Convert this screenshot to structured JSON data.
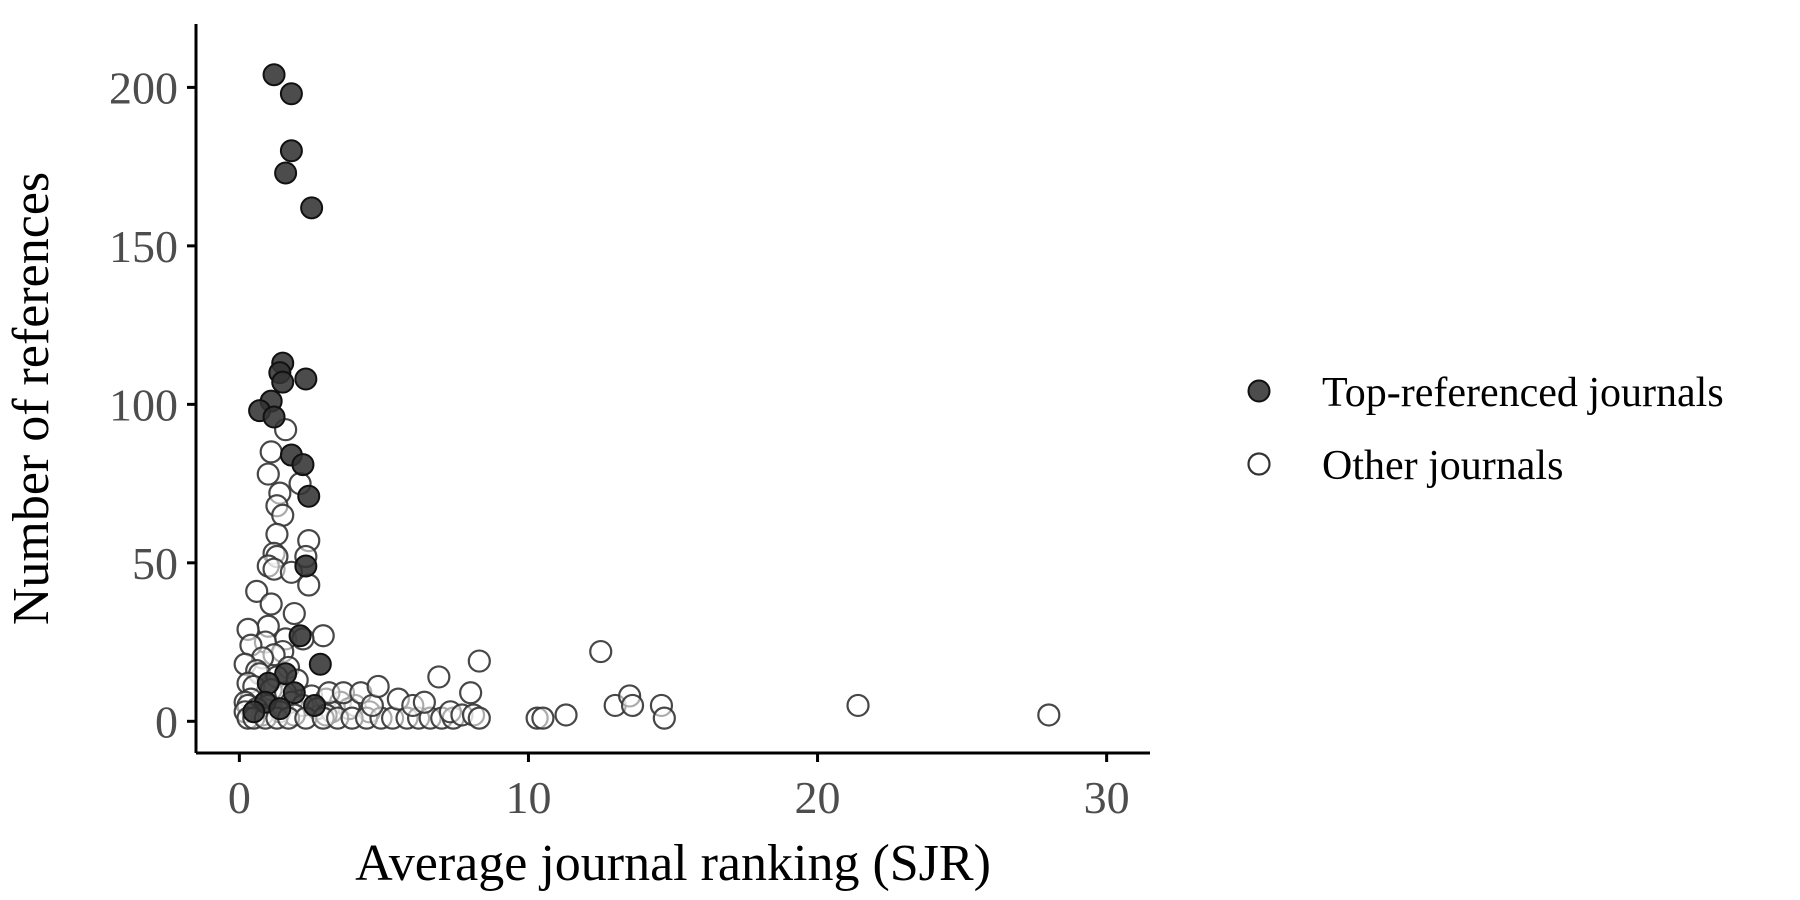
{
  "chart_data": {
    "type": "scatter",
    "xlabel": "Average journal ranking (SJR)",
    "ylabel": "Number of references",
    "xlim": [
      -1.5,
      31.5
    ],
    "ylim": [
      -10,
      220
    ],
    "xticks": [
      0,
      10,
      20,
      30
    ],
    "yticks": [
      0,
      50,
      100,
      150,
      200
    ],
    "grid": false,
    "legend_position": "right",
    "series": [
      {
        "name": "Top-referenced journals",
        "marker": "filled-circle",
        "color": "#333333",
        "points": [
          [
            1.2,
            204
          ],
          [
            1.8,
            198
          ],
          [
            1.8,
            180
          ],
          [
            1.6,
            173
          ],
          [
            2.5,
            162
          ],
          [
            1.5,
            113
          ],
          [
            1.4,
            110
          ],
          [
            2.3,
            108
          ],
          [
            1.5,
            107
          ],
          [
            1.1,
            101
          ],
          [
            0.7,
            98
          ],
          [
            1.2,
            96
          ],
          [
            1.8,
            84
          ],
          [
            2.2,
            81
          ],
          [
            2.4,
            71
          ],
          [
            2.3,
            49
          ],
          [
            2.1,
            27
          ],
          [
            2.8,
            18
          ],
          [
            1.6,
            15
          ],
          [
            1.0,
            12
          ],
          [
            1.9,
            9
          ],
          [
            0.9,
            6
          ],
          [
            2.6,
            5
          ],
          [
            1.4,
            4
          ],
          [
            0.5,
            3
          ]
        ]
      },
      {
        "name": "Other journals",
        "marker": "open-circle",
        "color": "#333333",
        "points": [
          [
            1.6,
            92
          ],
          [
            1.1,
            85
          ],
          [
            1.0,
            78
          ],
          [
            2.1,
            75
          ],
          [
            1.4,
            72
          ],
          [
            1.3,
            68
          ],
          [
            1.5,
            65
          ],
          [
            1.3,
            59
          ],
          [
            2.4,
            57
          ],
          [
            1.2,
            53
          ],
          [
            1.3,
            52
          ],
          [
            2.3,
            52
          ],
          [
            1.0,
            49
          ],
          [
            1.2,
            48
          ],
          [
            1.8,
            47
          ],
          [
            2.4,
            43
          ],
          [
            0.6,
            41
          ],
          [
            1.1,
            37
          ],
          [
            1.9,
            34
          ],
          [
            1.0,
            30
          ],
          [
            0.3,
            29
          ],
          [
            2.9,
            27
          ],
          [
            1.6,
            26
          ],
          [
            2.2,
            26
          ],
          [
            0.9,
            25
          ],
          [
            0.4,
            24
          ],
          [
            1.5,
            22
          ],
          [
            1.2,
            21
          ],
          [
            0.8,
            20
          ],
          [
            0.2,
            18
          ],
          [
            1.7,
            17
          ],
          [
            0.6,
            16
          ],
          [
            0.7,
            15
          ],
          [
            1.3,
            14
          ],
          [
            2.0,
            13
          ],
          [
            0.3,
            12
          ],
          [
            0.5,
            11
          ],
          [
            1.1,
            10
          ],
          [
            1.6,
            9
          ],
          [
            2.5,
            8
          ],
          [
            0.4,
            7
          ],
          [
            3.0,
            7
          ],
          [
            0.2,
            6
          ],
          [
            1.8,
            6
          ],
          [
            3.5,
            6
          ],
          [
            0.3,
            5
          ],
          [
            1.0,
            5
          ],
          [
            2.2,
            5
          ],
          [
            4.0,
            5
          ],
          [
            0.6,
            4
          ],
          [
            2.7,
            4
          ],
          [
            3.8,
            4
          ],
          [
            0.2,
            3
          ],
          [
            1.4,
            3
          ],
          [
            3.2,
            3
          ],
          [
            4.5,
            3
          ],
          [
            0.8,
            2
          ],
          [
            1.9,
            2
          ],
          [
            3.0,
            2
          ],
          [
            0.3,
            1
          ],
          [
            0.5,
            1
          ],
          [
            0.9,
            1
          ],
          [
            1.3,
            1
          ],
          [
            1.7,
            1
          ],
          [
            2.3,
            1
          ],
          [
            2.9,
            1
          ],
          [
            3.4,
            1
          ],
          [
            3.9,
            1
          ],
          [
            4.4,
            1
          ],
          [
            4.9,
            1
          ],
          [
            5.3,
            1
          ],
          [
            5.8,
            1
          ],
          [
            6.2,
            1
          ],
          [
            6.6,
            1
          ],
          [
            7.0,
            1
          ],
          [
            7.4,
            1
          ],
          [
            3.1,
            9
          ],
          [
            3.6,
            9
          ],
          [
            4.2,
            9
          ],
          [
            4.6,
            5
          ],
          [
            4.8,
            11
          ],
          [
            5.5,
            7
          ],
          [
            6.0,
            5
          ],
          [
            6.4,
            6
          ],
          [
            6.9,
            14
          ],
          [
            7.3,
            3
          ],
          [
            7.7,
            2
          ],
          [
            8.0,
            9
          ],
          [
            8.1,
            2
          ],
          [
            8.3,
            19
          ],
          [
            8.3,
            1
          ],
          [
            10.3,
            1
          ],
          [
            10.5,
            1
          ],
          [
            11.3,
            2
          ],
          [
            12.5,
            22
          ],
          [
            13.0,
            5
          ],
          [
            13.5,
            8
          ],
          [
            13.6,
            5
          ],
          [
            14.6,
            5
          ],
          [
            14.7,
            1
          ],
          [
            21.4,
            5
          ],
          [
            28.0,
            2
          ]
        ]
      }
    ]
  }
}
